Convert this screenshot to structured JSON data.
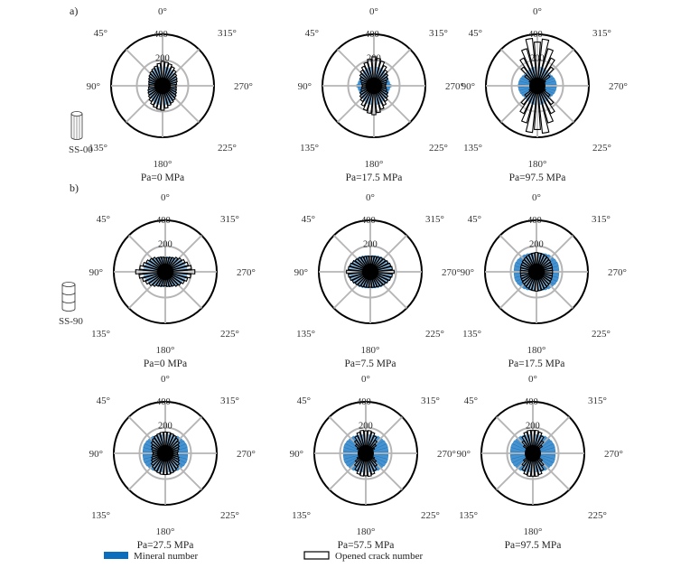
{
  "figure": {
    "panel_labels": [
      "a)",
      "b)"
    ],
    "specimens": [
      {
        "name": "SS-00",
        "icon": "vertical-bedding-cylinder-icon"
      },
      {
        "name": "SS-90",
        "icon": "horizontal-bedding-cylinder-icon"
      }
    ],
    "legend": {
      "mineral_label": "Mineral number",
      "crack_label": "Opened crack number",
      "mineral_color": "#0a6ebd",
      "crack_color": "#000000"
    }
  },
  "chart_data": [
    {
      "type": "rose",
      "panel": "a",
      "specimen": "SS-00",
      "title": "Pa=0 MPa",
      "angle_labels": [
        "0°",
        "45°",
        "90°",
        "135°",
        "180°",
        "225°",
        "270°",
        "315°"
      ],
      "radial_ticks": [
        200,
        400
      ],
      "rlim": [
        0,
        400
      ],
      "bin_deg": 10,
      "series": [
        {
          "name": "Mineral number",
          "values": [
            150,
            148,
            146,
            140,
            132,
            125,
            118,
            112,
            108,
            105,
            108,
            112,
            118,
            125,
            132,
            140,
            146,
            148
          ]
        },
        {
          "name": "Opened crack number",
          "values": [
            190,
            175,
            160,
            150,
            140,
            130,
            120,
            112,
            108,
            105,
            110,
            118,
            125,
            135,
            150,
            165,
            178,
            185
          ]
        }
      ]
    },
    {
      "type": "rose",
      "panel": "a",
      "specimen": "SS-00",
      "title": "Pa=17.5 MPa",
      "angle_labels": [
        "0°",
        "45°",
        "90°",
        "135°",
        "180°",
        "225°",
        "270°",
        "315°"
      ],
      "radial_ticks": [
        200,
        400
      ],
      "rlim": [
        0,
        400
      ],
      "bin_deg": 10,
      "series": [
        {
          "name": "Mineral number",
          "values": [
            150,
            148,
            146,
            140,
            132,
            128,
            125,
            122,
            125,
            135,
            125,
            122,
            125,
            128,
            132,
            140,
            146,
            148
          ]
        },
        {
          "name": "Opened crack number",
          "values": [
            225,
            210,
            190,
            170,
            150,
            135,
            120,
            105,
            95,
            90,
            95,
            105,
            120,
            135,
            150,
            175,
            200,
            215
          ]
        }
      ]
    },
    {
      "type": "rose",
      "panel": "a",
      "specimen": "SS-00",
      "title": "Pa=97.5 MPa",
      "angle_labels": [
        "0°",
        "45°",
        "90°",
        "135°",
        "180°",
        "225°",
        "270°",
        "315°"
      ],
      "radial_ticks": [
        200,
        400
      ],
      "rlim": [
        0,
        400
      ],
      "bin_deg": 10,
      "series": [
        {
          "name": "Mineral number",
          "values": [
            150,
            148,
            146,
            140,
            135,
            135,
            140,
            145,
            148,
            150,
            148,
            145,
            140,
            135,
            135,
            140,
            146,
            148
          ]
        },
        {
          "name": "Opened crack number",
          "values": [
            340,
            370,
            300,
            240,
            180,
            120,
            70,
            35,
            20,
            15,
            20,
            35,
            70,
            120,
            180,
            240,
            300,
            365
          ]
        }
      ]
    },
    {
      "type": "rose",
      "panel": "b",
      "specimen": "SS-90",
      "title": "Pa=0 MPa",
      "angle_labels": [
        "0°",
        "45°",
        "90°",
        "135°",
        "180°",
        "225°",
        "270°",
        "315°"
      ],
      "radial_ticks": [
        200,
        400
      ],
      "rlim": [
        0,
        400
      ],
      "bin_deg": 10,
      "series": [
        {
          "name": "Mineral number",
          "values": [
            115,
            118,
            122,
            128,
            135,
            145,
            155,
            165,
            170,
            175,
            170,
            165,
            155,
            145,
            135,
            128,
            122,
            118
          ]
        },
        {
          "name": "Opened crack number",
          "values": [
            110,
            115,
            120,
            125,
            140,
            150,
            165,
            180,
            200,
            230,
            205,
            185,
            170,
            155,
            140,
            125,
            118,
            112
          ]
        }
      ]
    },
    {
      "type": "rose",
      "panel": "b",
      "specimen": "SS-90",
      "title": "Pa=7.5 MPa",
      "angle_labels": [
        "0°",
        "45°",
        "90°",
        "135°",
        "180°",
        "225°",
        "270°",
        "315°"
      ],
      "radial_ticks": [
        200,
        400
      ],
      "rlim": [
        0,
        400
      ],
      "bin_deg": 10,
      "series": [
        {
          "name": "Mineral number",
          "values": [
            125,
            128,
            132,
            138,
            145,
            150,
            158,
            165,
            170,
            172,
            170,
            165,
            158,
            150,
            145,
            138,
            132,
            128
          ]
        },
        {
          "name": "Opened crack number",
          "values": [
            120,
            122,
            125,
            130,
            138,
            145,
            155,
            165,
            172,
            185,
            172,
            165,
            155,
            145,
            138,
            130,
            125,
            122
          ]
        }
      ]
    },
    {
      "type": "rose",
      "panel": "b",
      "specimen": "SS-90",
      "title": "Pa=17.5 MPa",
      "angle_labels": [
        "0°",
        "45°",
        "90°",
        "135°",
        "180°",
        "225°",
        "270°",
        "315°"
      ],
      "radial_ticks": [
        200,
        400
      ],
      "rlim": [
        0,
        400
      ],
      "bin_deg": 10,
      "series": [
        {
          "name": "Mineral number",
          "values": [
            145,
            148,
            152,
            158,
            165,
            170,
            175,
            178,
            176,
            175,
            176,
            178,
            175,
            170,
            165,
            158,
            152,
            148
          ]
        },
        {
          "name": "Opened crack number",
          "values": [
            150,
            148,
            145,
            142,
            138,
            135,
            130,
            128,
            125,
            125,
            125,
            128,
            130,
            135,
            138,
            142,
            145,
            148
          ]
        }
      ]
    },
    {
      "type": "rose",
      "panel": "b",
      "specimen": "SS-90",
      "title": "Pa=27.5 MPa",
      "angle_labels": [
        "0°",
        "45°",
        "90°",
        "135°",
        "180°",
        "225°",
        "270°",
        "315°"
      ],
      "radial_ticks": [
        200,
        400
      ],
      "rlim": [
        0,
        400
      ],
      "bin_deg": 10,
      "series": [
        {
          "name": "Mineral number",
          "values": [
            145,
            148,
            152,
            158,
            165,
            170,
            175,
            178,
            176,
            175,
            176,
            178,
            175,
            170,
            165,
            158,
            152,
            148
          ]
        },
        {
          "name": "Opened crack number",
          "values": [
            165,
            165,
            160,
            155,
            145,
            135,
            120,
            110,
            100,
            95,
            100,
            110,
            120,
            135,
            145,
            155,
            160,
            165
          ]
        }
      ]
    },
    {
      "type": "rose",
      "panel": "b",
      "specimen": "SS-90",
      "title": "Pa=57.5 MPa",
      "angle_labels": [
        "0°",
        "45°",
        "90°",
        "135°",
        "180°",
        "225°",
        "270°",
        "315°"
      ],
      "radial_ticks": [
        200,
        400
      ],
      "rlim": [
        0,
        400
      ],
      "bin_deg": 10,
      "series": [
        {
          "name": "Mineral number",
          "values": [
            145,
            148,
            152,
            158,
            165,
            170,
            175,
            178,
            176,
            175,
            176,
            178,
            175,
            170,
            165,
            158,
            152,
            148
          ]
        },
        {
          "name": "Opened crack number",
          "values": [
            175,
            180,
            170,
            150,
            125,
            100,
            75,
            55,
            40,
            35,
            40,
            55,
            75,
            100,
            125,
            150,
            170,
            178
          ]
        }
      ]
    },
    {
      "type": "rose",
      "panel": "b",
      "specimen": "SS-90",
      "title": "Pa=97.5 MPa",
      "angle_labels": [
        "0°",
        "45°",
        "90°",
        "135°",
        "180°",
        "225°",
        "270°",
        "315°"
      ],
      "radial_ticks": [
        200,
        400
      ],
      "rlim": [
        0,
        400
      ],
      "bin_deg": 10,
      "series": [
        {
          "name": "Mineral number",
          "values": [
            145,
            148,
            152,
            158,
            165,
            170,
            175,
            178,
            176,
            175,
            176,
            178,
            175,
            170,
            165,
            158,
            152,
            148
          ]
        },
        {
          "name": "Opened crack number",
          "values": [
            178,
            180,
            172,
            150,
            120,
            90,
            60,
            40,
            28,
            25,
            28,
            40,
            60,
            90,
            120,
            150,
            172,
            180
          ]
        }
      ]
    }
  ]
}
